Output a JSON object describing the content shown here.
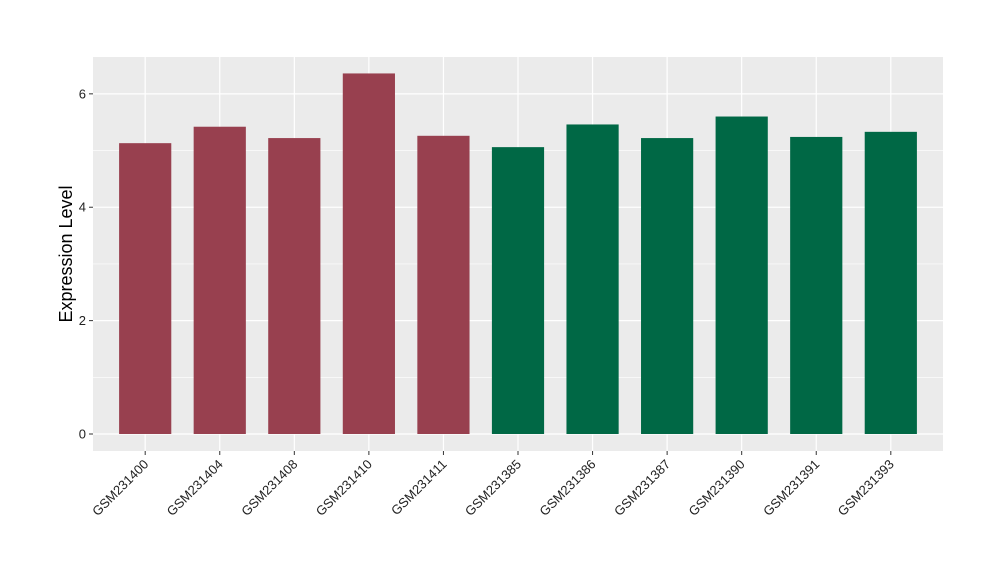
{
  "chart_data": {
    "type": "bar",
    "title": "",
    "xlabel": "",
    "ylabel": "Expression Level",
    "ylim": [
      -0.3,
      6.65
    ],
    "yticks": [
      0,
      2,
      4,
      6
    ],
    "grid": true,
    "categories": [
      "GSM231400",
      "GSM231404",
      "GSM231408",
      "GSM231410",
      "GSM231411",
      "GSM231385",
      "GSM231386",
      "GSM231387",
      "GSM231390",
      "GSM231391",
      "GSM231393"
    ],
    "values": [
      5.13,
      5.42,
      5.22,
      6.36,
      5.26,
      5.06,
      5.46,
      5.22,
      5.6,
      5.24,
      5.33
    ],
    "bar_colors": [
      "#98404f",
      "#98404f",
      "#98404f",
      "#98404f",
      "#98404f",
      "#006845",
      "#006845",
      "#006845",
      "#006845",
      "#006845",
      "#006845"
    ],
    "panel_background": "#ebebeb",
    "grid_color": "#ffffff"
  }
}
